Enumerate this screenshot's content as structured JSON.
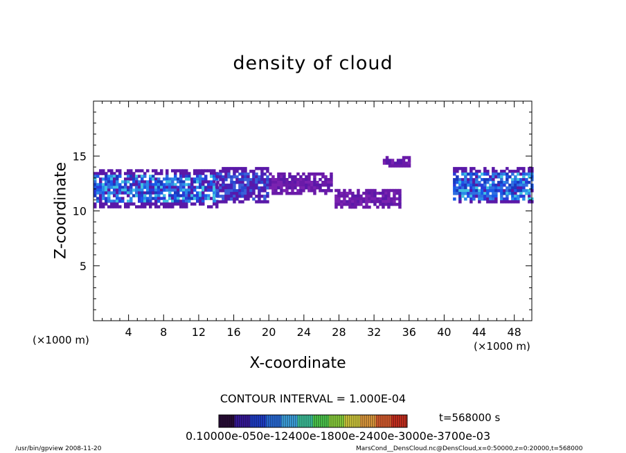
{
  "chart_data": {
    "type": "heatmap",
    "title": "density of cloud",
    "xlabel": "X-coordinate",
    "ylabel": "Z-coordinate",
    "x_unit_left": "(×1000 m)",
    "x_unit_right": "(×1000 m)",
    "xlim": [
      0,
      50
    ],
    "ylim": [
      0,
      20
    ],
    "x_ticks": [
      4,
      8,
      12,
      16,
      20,
      24,
      28,
      32,
      36,
      40,
      44,
      48
    ],
    "y_ticks": [
      5,
      10,
      15
    ],
    "contour_interval": "CONTOUR INTERVAL = 1.000E-04",
    "time_label": "t=568000 s",
    "colorbar_labels": "0.10000e-050e-12400e-1800e-2400e-3000e-3700e-03",
    "colorbar_colors": [
      "#2a0d3a",
      "#3a1aa0",
      "#2040d0",
      "#2a70e0",
      "#40a8e8",
      "#40c8a0",
      "#50d050",
      "#90d840",
      "#d8d040",
      "#e8a040",
      "#e06030",
      "#d03020"
    ],
    "cloud_regions": [
      {
        "x": [
          0,
          14
        ],
        "z": [
          10.5,
          13.8
        ],
        "level": "high"
      },
      {
        "x": [
          14,
          20
        ],
        "z": [
          10.8,
          14.0
        ],
        "level": "mid"
      },
      {
        "x": [
          20,
          27
        ],
        "z": [
          11.5,
          13.5
        ],
        "level": "low"
      },
      {
        "x": [
          27.5,
          35
        ],
        "z": [
          10.4,
          12.0
        ],
        "level": "low"
      },
      {
        "x": [
          33,
          36
        ],
        "z": [
          14.2,
          15.0
        ],
        "level": "low"
      },
      {
        "x": [
          41,
          50
        ],
        "z": [
          10.8,
          14.0
        ],
        "level": "high"
      }
    ]
  },
  "footer": {
    "left": "/usr/bin/gpview   2008-11-20",
    "right": "MarsCond__DensCloud.nc@DensCloud,x=0:50000,z=0:20000,t=568000"
  }
}
